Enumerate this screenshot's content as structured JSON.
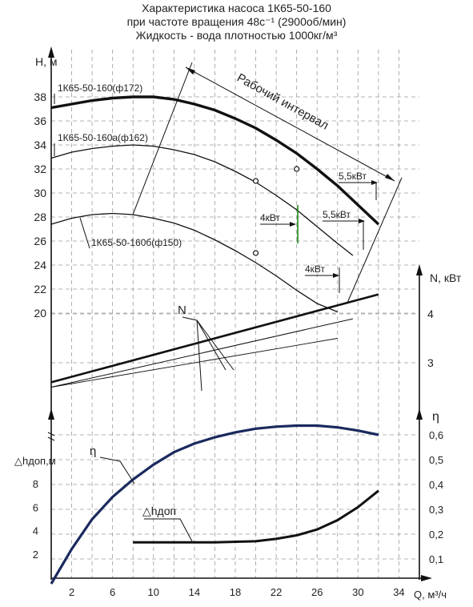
{
  "title_lines": [
    "Характеристика насоса 1К65-50-160",
    "при частоте вращения 48с⁻¹ (2900об/мин)",
    "Жидкость - вода плотностью 1000кг/м³"
  ],
  "colors": {
    "ink": "#111111",
    "grid": "#9a9a9a",
    "eta": "#1a2a5e",
    "green": "#1a8a1a"
  },
  "chart_data": {
    "type": "line",
    "grid": true,
    "x_axis": {
      "label": "Q, м³/ч",
      "ticks": [
        "2",
        "6",
        "10",
        "14",
        "18",
        "22",
        "26",
        "30",
        "34"
      ],
      "range": [
        0,
        36
      ]
    },
    "h_axis": {
      "label": "H, м",
      "ticks": [
        "20",
        "22",
        "24",
        "26",
        "28",
        "30",
        "32",
        "34",
        "36",
        "38"
      ],
      "range": [
        20,
        39
      ]
    },
    "n_axis": {
      "label": "N, кВт",
      "ticks": [
        "3",
        "4"
      ],
      "range": [
        2.3,
        4.9
      ]
    },
    "eta_axis": {
      "label": "η",
      "ticks": [
        "0,1",
        "0,2",
        "0,3",
        "0,4",
        "0,5",
        "0,6"
      ],
      "range": [
        0,
        0.66
      ]
    },
    "npsh_axis": {
      "label": "△hдоп,м",
      "ticks": [
        "2",
        "4",
        "6",
        "8"
      ],
      "range": [
        0,
        9.8
      ]
    },
    "h_series": [
      {
        "name": "1К65-50-160(ф172)",
        "x": [
          0,
          2,
          4,
          6,
          8,
          10,
          12,
          14,
          16,
          18,
          20,
          22,
          24,
          26,
          28,
          30,
          32
        ],
        "y": [
          37.1,
          37.4,
          37.7,
          37.9,
          38.0,
          38.0,
          37.8,
          37.4,
          36.9,
          36.2,
          35.4,
          34.4,
          33.3,
          32.0,
          30.6,
          29.0,
          27.4
        ]
      },
      {
        "name": "1К65-50-160а(ф162)",
        "x": [
          0,
          2,
          4,
          6,
          8,
          10,
          12,
          14,
          16,
          18,
          20,
          22,
          24,
          26,
          28,
          29.5
        ],
        "y": [
          32.9,
          33.4,
          33.7,
          33.9,
          34.0,
          33.9,
          33.6,
          33.2,
          32.6,
          31.8,
          30.9,
          29.8,
          28.6,
          27.2,
          25.8,
          24.8
        ]
      },
      {
        "name": "1К65-50-160б(ф150)",
        "x": [
          0,
          2,
          4,
          6,
          8,
          10,
          12,
          14,
          16,
          18,
          20,
          22,
          24,
          26,
          28
        ],
        "y": [
          27.4,
          27.9,
          28.2,
          28.3,
          28.2,
          27.9,
          27.5,
          26.9,
          26.1,
          25.2,
          24.2,
          23.1,
          21.9,
          20.8,
          20.1
        ]
      }
    ],
    "n_series": [
      {
        "name": "N ф172",
        "x": [
          0,
          32
        ],
        "y": [
          2.6,
          4.4
        ]
      },
      {
        "name": "N ф162",
        "x": [
          0,
          29.5
        ],
        "y": [
          2.5,
          3.9
        ]
      },
      {
        "name": "N ф150",
        "x": [
          0,
          28
        ],
        "y": [
          2.5,
          3.5
        ]
      }
    ],
    "eta_series": {
      "name": "η",
      "x": [
        0,
        2,
        4,
        6,
        8,
        10,
        12,
        14,
        16,
        18,
        20,
        22,
        24,
        26,
        28,
        30,
        32
      ],
      "y": [
        0,
        0.14,
        0.26,
        0.35,
        0.42,
        0.48,
        0.53,
        0.565,
        0.59,
        0.61,
        0.625,
        0.633,
        0.637,
        0.637,
        0.63,
        0.617,
        0.6
      ]
    },
    "npsh_series": {
      "name": "△hдоп",
      "x": [
        8,
        12,
        16,
        20,
        22,
        24,
        26,
        28,
        30,
        32
      ],
      "y": [
        3.0,
        3.0,
        3.0,
        3.1,
        3.3,
        3.6,
        4.1,
        4.9,
        6.0,
        7.4
      ]
    },
    "markers": [
      {
        "x": 24,
        "y": 32
      },
      {
        "x": 20,
        "y": 31
      },
      {
        "x": 20,
        "y": 25
      }
    ],
    "annotations": {
      "label_172": "1К65-50-160(ф172)",
      "label_162": "1К65-50-160а(ф162)",
      "label_150": "1К65-50-160б(ф150)",
      "working_interval": "Рабочий интервал",
      "n_label": "N",
      "eta_label": "η",
      "npsh_label": "△hдоп",
      "kw55_top": "5,5кВт",
      "kw4_mid": "4кВт",
      "kw55_mid": "5,5кВт",
      "kw4_low": "4кВт"
    }
  }
}
